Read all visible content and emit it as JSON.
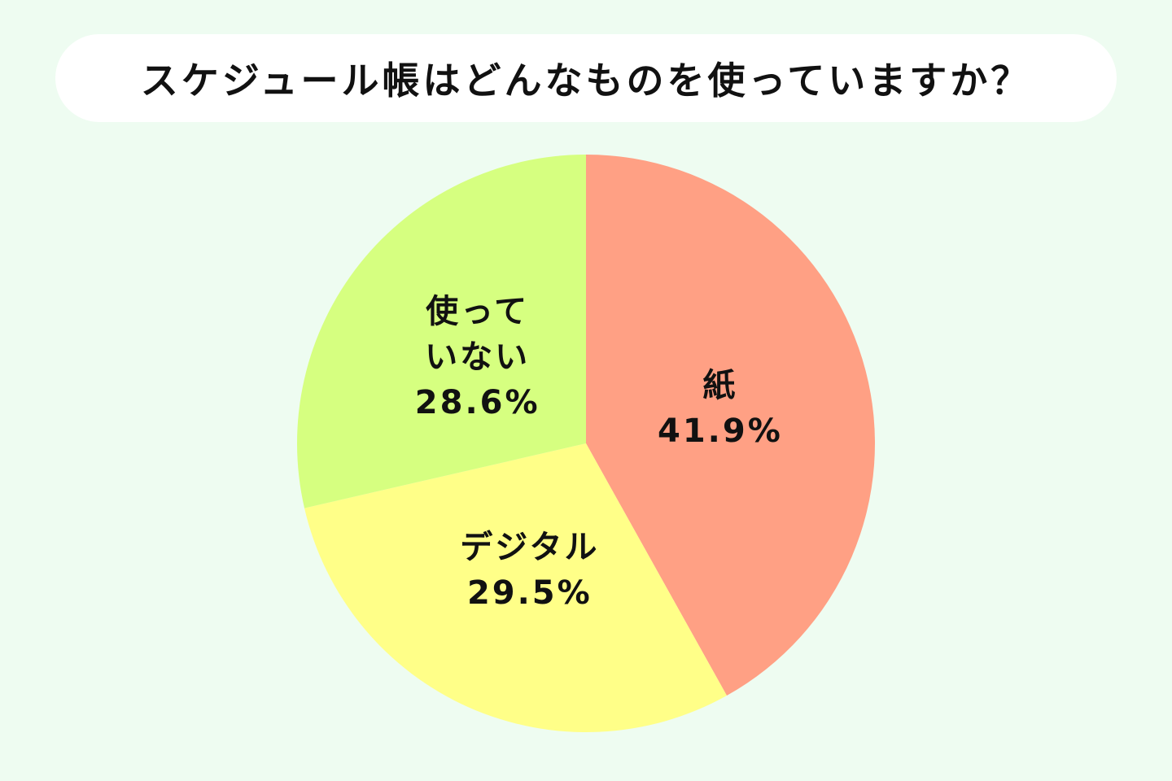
{
  "chart_data": {
    "type": "pie",
    "title": "スケジュール帳はどんなものを使っていますか？",
    "categories": [
      "紙",
      "デジタル",
      "使って\nいない"
    ],
    "values": [
      41.9,
      29.5,
      28.6
    ],
    "value_labels": [
      "41.9%",
      "29.5%",
      "28.6%"
    ],
    "colors": [
      "#ffa084",
      "#ffff88",
      "#d6ff80"
    ]
  }
}
